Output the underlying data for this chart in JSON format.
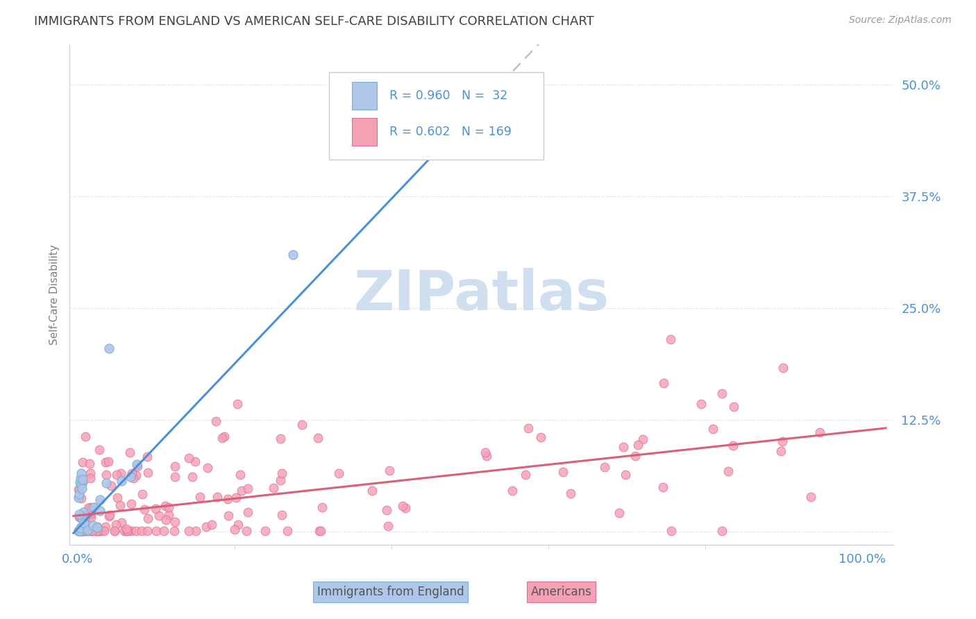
{
  "title": "IMMIGRANTS FROM ENGLAND VS AMERICAN SELF-CARE DISABILITY CORRELATION CHART",
  "source": "Source: ZipAtlas.com",
  "ylabel": "Self-Care Disability",
  "ytick_positions": [
    0.0,
    0.125,
    0.25,
    0.375,
    0.5
  ],
  "ytick_labels": [
    "",
    "12.5%",
    "25.0%",
    "37.5%",
    "50.0%"
  ],
  "xtick_positions": [
    0.0,
    1.0
  ],
  "xtick_labels": [
    "0.0%",
    "100.0%"
  ],
  "england_color": "#aec6e8",
  "england_edge": "#7aafd4",
  "americans_color": "#f4a0b5",
  "americans_edge": "#e07090",
  "england_line_color": "#4a90d9",
  "americans_line_color": "#d9607a",
  "trend_ext_color": "#c0c0c0",
  "watermark": "ZIPatlas",
  "watermark_color": "#d0dff0",
  "background_color": "#ffffff",
  "grid_color": "#e8e8e8",
  "title_color": "#404040",
  "axis_label_color": "#4a90d9",
  "tick_label_color": "#4a90d9",
  "ylabel_color": "#808080",
  "legend_text_color": "#333333",
  "eng_slope": 0.923,
  "eng_intercept": 0.003,
  "ame_slope": 0.095,
  "ame_intercept": 0.018,
  "xlim": [
    -0.01,
    1.04
  ],
  "ylim": [
    -0.015,
    0.545
  ]
}
